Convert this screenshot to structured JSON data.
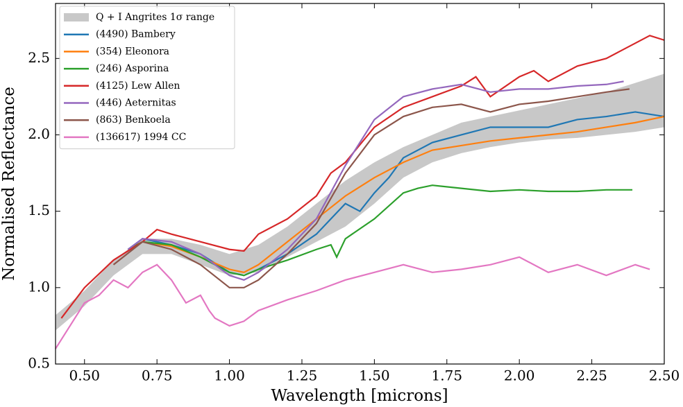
{
  "chart_data": {
    "type": "line",
    "xlabel": "Wavelength [microns]",
    "ylabel": "Normalised Reflectance",
    "xlim": [
      0.4,
      2.5
    ],
    "ylim": [
      0.5,
      2.86
    ],
    "xticks": [
      {
        "value": 0.5,
        "label": "0.50"
      },
      {
        "value": 0.75,
        "label": "0.75"
      },
      {
        "value": 1.0,
        "label": "1.00"
      },
      {
        "value": 1.25,
        "label": "1.25"
      },
      {
        "value": 1.5,
        "label": "1.50"
      },
      {
        "value": 1.75,
        "label": "1.75"
      },
      {
        "value": 2.0,
        "label": "2.00"
      },
      {
        "value": 2.25,
        "label": "2.25"
      },
      {
        "value": 2.5,
        "label": "2.50"
      }
    ],
    "yticks": [
      0.5,
      {
        "value": 1.0,
        "label": "1.0"
      },
      1.5,
      {
        "value": 2.0,
        "label": "2.0"
      },
      2.5
    ],
    "legend": "upper left",
    "band": {
      "name": "Q + I Angrites 1σ range",
      "color": "#c8c8c8",
      "x": [
        0.4,
        0.5,
        0.6,
        0.7,
        0.8,
        0.9,
        1.0,
        1.1,
        1.2,
        1.3,
        1.4,
        1.5,
        1.6,
        1.7,
        1.8,
        1.9,
        2.0,
        2.1,
        2.2,
        2.3,
        2.4,
        2.5
      ],
      "lower": [
        0.72,
        0.88,
        1.08,
        1.22,
        1.22,
        1.15,
        1.08,
        1.1,
        1.2,
        1.3,
        1.4,
        1.55,
        1.72,
        1.82,
        1.88,
        1.92,
        1.95,
        1.97,
        1.98,
        2.0,
        2.02,
        2.05
      ],
      "upper": [
        0.82,
        0.98,
        1.18,
        1.32,
        1.32,
        1.28,
        1.22,
        1.28,
        1.4,
        1.55,
        1.7,
        1.82,
        1.92,
        2.0,
        2.08,
        2.12,
        2.16,
        2.2,
        2.24,
        2.28,
        2.34,
        2.4
      ]
    },
    "series": [
      {
        "name": "(4490) Bambery",
        "color": "#1f77b4",
        "x": [
          0.65,
          0.7,
          0.8,
          0.9,
          1.0,
          1.05,
          1.1,
          1.2,
          1.3,
          1.35,
          1.4,
          1.45,
          1.5,
          1.55,
          1.6,
          1.7,
          1.8,
          1.9,
          2.0,
          2.1,
          2.2,
          2.3,
          2.4,
          2.5
        ],
        "values": [
          1.25,
          1.32,
          1.28,
          1.22,
          1.1,
          1.08,
          1.12,
          1.22,
          1.35,
          1.45,
          1.55,
          1.5,
          1.62,
          1.72,
          1.85,
          1.95,
          2.0,
          2.05,
          2.05,
          2.05,
          2.1,
          2.12,
          2.15,
          2.12
        ]
      },
      {
        "name": "(354) Eleonora",
        "color": "#ff7f0e",
        "x": [
          0.65,
          0.7,
          0.8,
          0.9,
          1.0,
          1.05,
          1.1,
          1.2,
          1.3,
          1.4,
          1.5,
          1.6,
          1.7,
          1.8,
          1.9,
          2.0,
          2.1,
          2.2,
          2.3,
          2.4,
          2.5
        ],
        "values": [
          1.25,
          1.3,
          1.27,
          1.2,
          1.12,
          1.1,
          1.15,
          1.3,
          1.45,
          1.6,
          1.72,
          1.82,
          1.9,
          1.93,
          1.96,
          1.98,
          2.0,
          2.02,
          2.05,
          2.08,
          2.12
        ]
      },
      {
        "name": "(246) Asporina",
        "color": "#2ca02c",
        "x": [
          0.65,
          0.7,
          0.8,
          0.9,
          1.0,
          1.05,
          1.1,
          1.2,
          1.3,
          1.35,
          1.37,
          1.4,
          1.5,
          1.6,
          1.65,
          1.7,
          1.8,
          1.9,
          2.0,
          2.1,
          2.2,
          2.3,
          2.39
        ],
        "values": [
          1.25,
          1.3,
          1.28,
          1.2,
          1.1,
          1.08,
          1.12,
          1.18,
          1.25,
          1.28,
          1.2,
          1.32,
          1.45,
          1.62,
          1.65,
          1.67,
          1.65,
          1.63,
          1.64,
          1.63,
          1.63,
          1.64,
          1.64
        ]
      },
      {
        "name": "(4125) Lew Allen",
        "color": "#d62728",
        "x": [
          0.42,
          0.5,
          0.6,
          0.7,
          0.75,
          0.8,
          0.9,
          1.0,
          1.05,
          1.1,
          1.2,
          1.3,
          1.35,
          1.4,
          1.5,
          1.6,
          1.7,
          1.8,
          1.85,
          1.9,
          2.0,
          2.05,
          2.1,
          2.2,
          2.3,
          2.35,
          2.4,
          2.45,
          2.5
        ],
        "values": [
          0.8,
          1.0,
          1.18,
          1.3,
          1.38,
          1.35,
          1.3,
          1.25,
          1.24,
          1.35,
          1.45,
          1.6,
          1.75,
          1.82,
          2.05,
          2.18,
          2.25,
          2.32,
          2.38,
          2.25,
          2.38,
          2.42,
          2.35,
          2.45,
          2.5,
          2.55,
          2.6,
          2.65,
          2.62
        ]
      },
      {
        "name": "(446) Aeternitas",
        "color": "#9467bd",
        "x": [
          0.65,
          0.7,
          0.8,
          0.9,
          1.0,
          1.05,
          1.1,
          1.2,
          1.3,
          1.4,
          1.5,
          1.6,
          1.7,
          1.8,
          1.9,
          2.0,
          2.1,
          2.2,
          2.3,
          2.36
        ],
        "values": [
          1.25,
          1.32,
          1.3,
          1.22,
          1.08,
          1.05,
          1.1,
          1.25,
          1.45,
          1.8,
          2.1,
          2.25,
          2.3,
          2.33,
          2.28,
          2.3,
          2.3,
          2.32,
          2.33,
          2.35
        ]
      },
      {
        "name": "(863) Benkoela",
        "color": "#8c564b",
        "x": [
          0.6,
          0.7,
          0.8,
          0.9,
          1.0,
          1.05,
          1.1,
          1.2,
          1.3,
          1.4,
          1.5,
          1.6,
          1.7,
          1.8,
          1.9,
          2.0,
          2.1,
          2.2,
          2.3,
          2.38
        ],
        "values": [
          1.15,
          1.3,
          1.25,
          1.15,
          1.0,
          1.0,
          1.05,
          1.22,
          1.42,
          1.75,
          2.0,
          2.12,
          2.18,
          2.2,
          2.15,
          2.2,
          2.22,
          2.25,
          2.28,
          2.3
        ]
      },
      {
        "name": "(136617) 1994 CC",
        "color": "#e377c2",
        "x": [
          0.4,
          0.45,
          0.5,
          0.55,
          0.6,
          0.65,
          0.7,
          0.75,
          0.8,
          0.85,
          0.9,
          0.93,
          0.95,
          1.0,
          1.05,
          1.1,
          1.2,
          1.3,
          1.4,
          1.5,
          1.6,
          1.7,
          1.8,
          1.9,
          2.0,
          2.1,
          2.2,
          2.3,
          2.4,
          2.45
        ],
        "values": [
          0.6,
          0.75,
          0.9,
          0.95,
          1.05,
          1.0,
          1.1,
          1.15,
          1.05,
          0.9,
          0.95,
          0.85,
          0.8,
          0.75,
          0.78,
          0.85,
          0.92,
          0.98,
          1.05,
          1.1,
          1.15,
          1.1,
          1.12,
          1.15,
          1.2,
          1.1,
          1.15,
          1.08,
          1.15,
          1.12
        ]
      }
    ]
  }
}
